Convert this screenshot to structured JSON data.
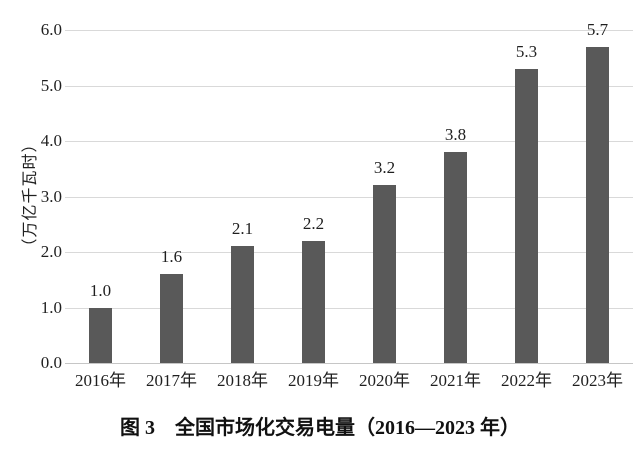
{
  "chart_data": {
    "type": "bar",
    "title": "图 3　全国市场化交易电量（2016—2023 年）",
    "ylabel": "（万亿千瓦时）",
    "xlabel": "",
    "categories": [
      "2016年",
      "2017年",
      "2018年",
      "2019年",
      "2020年",
      "2021年",
      "2022年",
      "2023年"
    ],
    "values": [
      1.0,
      1.6,
      2.1,
      2.2,
      3.2,
      3.8,
      5.3,
      5.7
    ],
    "value_labels": [
      "1.0",
      "1.6",
      "2.1",
      "2.2",
      "3.2",
      "3.8",
      "5.3",
      "5.7"
    ],
    "ylim": [
      0,
      6
    ],
    "ytick_step": 1.0,
    "yticks": [
      "6.0",
      "5.0",
      "4.0",
      "3.0",
      "2.0",
      "1.0",
      "0.0"
    ],
    "grid": true,
    "legend_position": "none",
    "bar_color": "#595959",
    "gridline_color": "#d9d9d9",
    "axisline_color": "#c6c6c6",
    "text_color": "#1f1f1f",
    "background_color": "#ffffff"
  }
}
